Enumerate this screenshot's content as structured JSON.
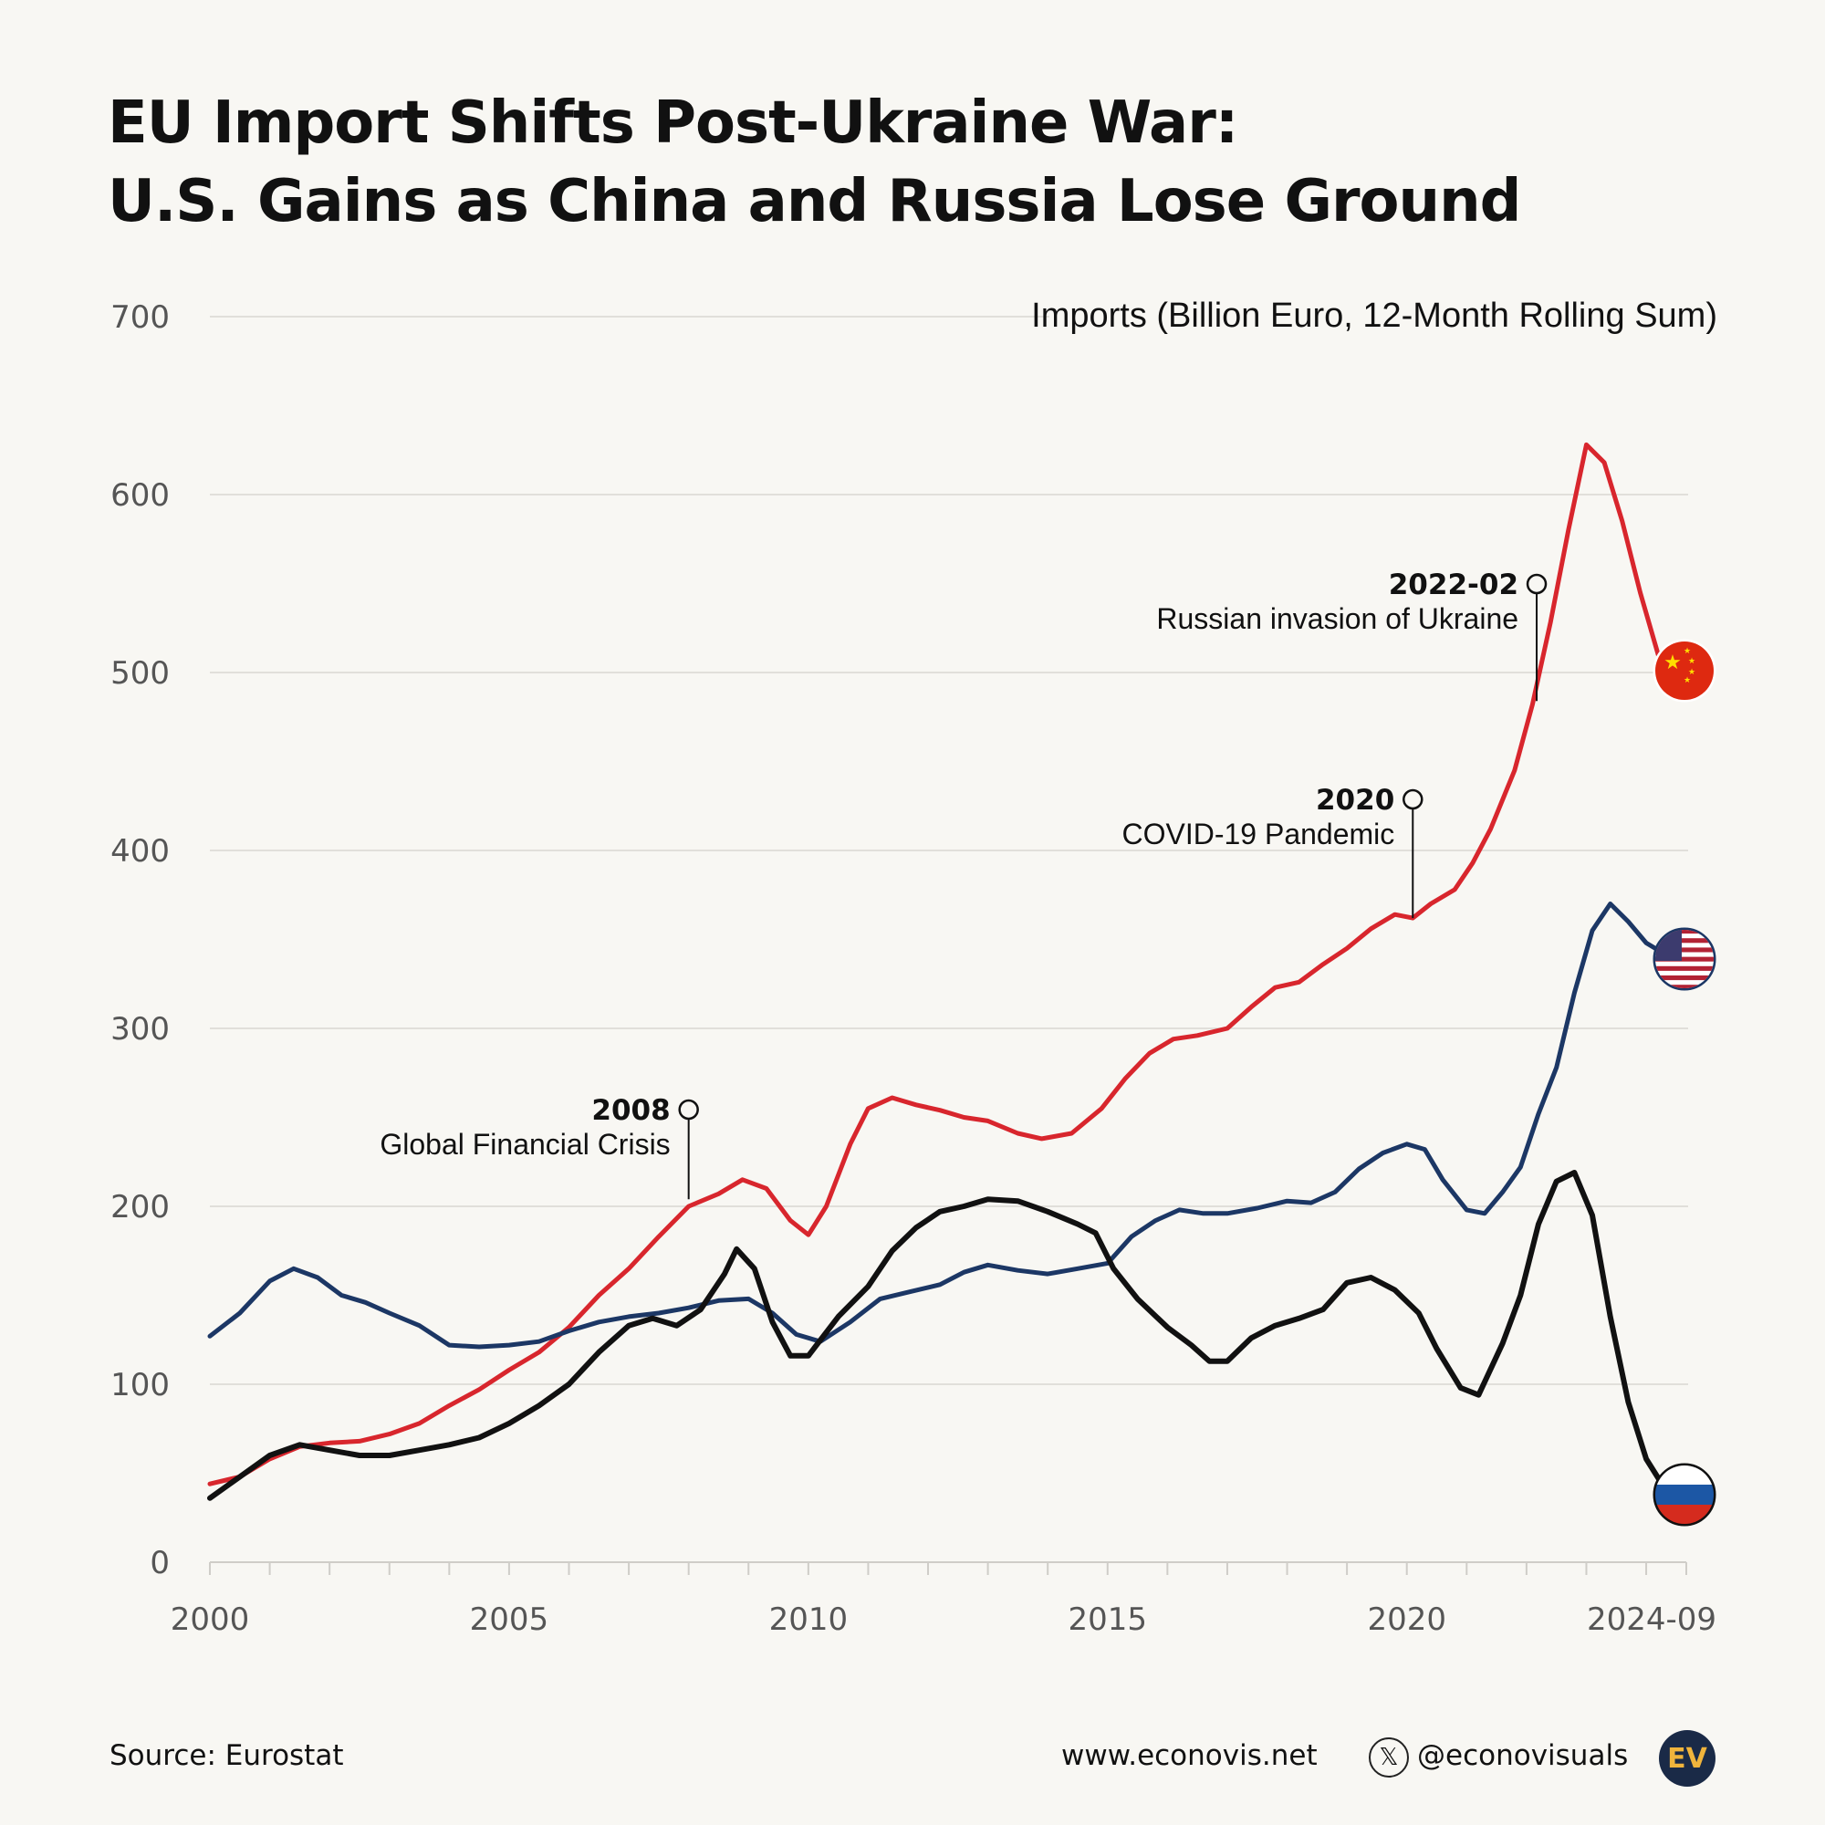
{
  "title": {
    "line1": "EU Import Shifts Post-Ukraine War:",
    "line2": "U.S. Gains as China and Russia Lose Ground"
  },
  "chart_data": {
    "type": "line",
    "title": "EU Import Shifts Post-Ukraine War: U.S. Gains as China and Russia Lose Ground",
    "ylabel": "Imports (Billion Euro, 12-Month Rolling Sum)",
    "xlabel": "",
    "ylim": [
      0,
      700
    ],
    "xlim": [
      2000,
      2024.67
    ],
    "y_ticks": [
      0,
      100,
      200,
      300,
      400,
      500,
      600,
      700
    ],
    "x_tick_labels": [
      {
        "x": 2000,
        "label": "2000"
      },
      {
        "x": 2005,
        "label": "2005"
      },
      {
        "x": 2010,
        "label": "2010"
      },
      {
        "x": 2015,
        "label": "2015"
      },
      {
        "x": 2020,
        "label": "2020"
      },
      {
        "x": 2024.67,
        "label": "2024-09"
      }
    ],
    "series": [
      {
        "name": "China",
        "color": "#d8262d",
        "flag": "china-flag",
        "points": [
          [
            2000,
            44
          ],
          [
            2000.5,
            48
          ],
          [
            2001,
            58
          ],
          [
            2001.5,
            65
          ],
          [
            2002,
            67
          ],
          [
            2002.5,
            68
          ],
          [
            2003,
            72
          ],
          [
            2003.5,
            78
          ],
          [
            2004,
            88
          ],
          [
            2004.5,
            97
          ],
          [
            2005,
            108
          ],
          [
            2005.5,
            118
          ],
          [
            2006,
            132
          ],
          [
            2006.5,
            150
          ],
          [
            2007,
            165
          ],
          [
            2007.5,
            183
          ],
          [
            2008,
            200
          ],
          [
            2008.5,
            207
          ],
          [
            2008.9,
            215
          ],
          [
            2009.3,
            210
          ],
          [
            2009.7,
            192
          ],
          [
            2010,
            184
          ],
          [
            2010.3,
            200
          ],
          [
            2010.7,
            235
          ],
          [
            2011,
            255
          ],
          [
            2011.4,
            261
          ],
          [
            2011.8,
            257
          ],
          [
            2012.2,
            254
          ],
          [
            2012.6,
            250
          ],
          [
            2013,
            248
          ],
          [
            2013.5,
            241
          ],
          [
            2013.9,
            238
          ],
          [
            2014.4,
            241
          ],
          [
            2014.9,
            255
          ],
          [
            2015.3,
            272
          ],
          [
            2015.7,
            286
          ],
          [
            2016.1,
            294
          ],
          [
            2016.5,
            296
          ],
          [
            2017,
            300
          ],
          [
            2017.4,
            312
          ],
          [
            2017.8,
            323
          ],
          [
            2018.2,
            326
          ],
          [
            2018.6,
            336
          ],
          [
            2019,
            345
          ],
          [
            2019.4,
            356
          ],
          [
            2019.8,
            364
          ],
          [
            2020.1,
            362
          ],
          [
            2020.4,
            370
          ],
          [
            2020.8,
            378
          ],
          [
            2021.1,
            393
          ],
          [
            2021.4,
            412
          ],
          [
            2021.8,
            445
          ],
          [
            2022.1,
            482
          ],
          [
            2022.4,
            528
          ],
          [
            2022.7,
            580
          ],
          [
            2023,
            628
          ],
          [
            2023.3,
            618
          ],
          [
            2023.6,
            585
          ],
          [
            2023.9,
            545
          ],
          [
            2024.2,
            510
          ],
          [
            2024.67,
            500
          ]
        ]
      },
      {
        "name": "United States",
        "color": "#1c3765",
        "flag": "usa-flag",
        "points": [
          [
            2000,
            127
          ],
          [
            2000.5,
            140
          ],
          [
            2001,
            158
          ],
          [
            2001.4,
            165
          ],
          [
            2001.8,
            160
          ],
          [
            2002.2,
            150
          ],
          [
            2002.6,
            146
          ],
          [
            2003,
            140
          ],
          [
            2003.5,
            133
          ],
          [
            2004,
            122
          ],
          [
            2004.5,
            121
          ],
          [
            2005,
            122
          ],
          [
            2005.5,
            124
          ],
          [
            2006,
            130
          ],
          [
            2006.5,
            135
          ],
          [
            2007,
            138
          ],
          [
            2007.5,
            140
          ],
          [
            2008,
            143
          ],
          [
            2008.5,
            147
          ],
          [
            2009,
            148
          ],
          [
            2009.4,
            140
          ],
          [
            2009.8,
            128
          ],
          [
            2010.2,
            124
          ],
          [
            2010.7,
            135
          ],
          [
            2011.2,
            148
          ],
          [
            2011.7,
            152
          ],
          [
            2012.2,
            156
          ],
          [
            2012.6,
            163
          ],
          [
            2013,
            167
          ],
          [
            2013.5,
            164
          ],
          [
            2014,
            162
          ],
          [
            2014.5,
            165
          ],
          [
            2015,
            168
          ],
          [
            2015.4,
            183
          ],
          [
            2015.8,
            192
          ],
          [
            2016.2,
            198
          ],
          [
            2016.6,
            196
          ],
          [
            2017,
            196
          ],
          [
            2017.5,
            199
          ],
          [
            2018,
            203
          ],
          [
            2018.4,
            202
          ],
          [
            2018.8,
            208
          ],
          [
            2019.2,
            221
          ],
          [
            2019.6,
            230
          ],
          [
            2020,
            235
          ],
          [
            2020.3,
            232
          ],
          [
            2020.6,
            215
          ],
          [
            2021,
            198
          ],
          [
            2021.3,
            196
          ],
          [
            2021.6,
            208
          ],
          [
            2021.9,
            222
          ],
          [
            2022.2,
            252
          ],
          [
            2022.5,
            278
          ],
          [
            2022.8,
            320
          ],
          [
            2023.1,
            355
          ],
          [
            2023.4,
            370
          ],
          [
            2023.7,
            360
          ],
          [
            2024,
            348
          ],
          [
            2024.3,
            342
          ],
          [
            2024.67,
            339
          ]
        ]
      },
      {
        "name": "Russia",
        "color": "#111111",
        "flag": "russia-flag",
        "points": [
          [
            2000,
            36
          ],
          [
            2000.5,
            48
          ],
          [
            2001,
            60
          ],
          [
            2001.5,
            66
          ],
          [
            2002,
            63
          ],
          [
            2002.5,
            60
          ],
          [
            2003,
            60
          ],
          [
            2003.5,
            63
          ],
          [
            2004,
            66
          ],
          [
            2004.5,
            70
          ],
          [
            2005,
            78
          ],
          [
            2005.5,
            88
          ],
          [
            2006,
            100
          ],
          [
            2006.5,
            118
          ],
          [
            2007,
            133
          ],
          [
            2007.4,
            137
          ],
          [
            2007.8,
            133
          ],
          [
            2008.2,
            142
          ],
          [
            2008.6,
            162
          ],
          [
            2008.8,
            176
          ],
          [
            2009.1,
            165
          ],
          [
            2009.4,
            135
          ],
          [
            2009.7,
            116
          ],
          [
            2010,
            116
          ],
          [
            2010.5,
            138
          ],
          [
            2011,
            155
          ],
          [
            2011.4,
            175
          ],
          [
            2011.8,
            188
          ],
          [
            2012.2,
            197
          ],
          [
            2012.6,
            200
          ],
          [
            2013,
            204
          ],
          [
            2013.5,
            203
          ],
          [
            2014,
            197
          ],
          [
            2014.5,
            190
          ],
          [
            2014.8,
            185
          ],
          [
            2015.1,
            165
          ],
          [
            2015.5,
            148
          ],
          [
            2016,
            132
          ],
          [
            2016.4,
            122
          ],
          [
            2016.7,
            113
          ],
          [
            2017,
            113
          ],
          [
            2017.4,
            126
          ],
          [
            2017.8,
            133
          ],
          [
            2018.2,
            137
          ],
          [
            2018.6,
            142
          ],
          [
            2019,
            157
          ],
          [
            2019.4,
            160
          ],
          [
            2019.8,
            153
          ],
          [
            2020.2,
            140
          ],
          [
            2020.5,
            120
          ],
          [
            2020.9,
            98
          ],
          [
            2021.2,
            94
          ],
          [
            2021.6,
            123
          ],
          [
            2021.9,
            150
          ],
          [
            2022.2,
            190
          ],
          [
            2022.5,
            214
          ],
          [
            2022.8,
            219
          ],
          [
            2023.1,
            195
          ],
          [
            2023.4,
            138
          ],
          [
            2023.7,
            90
          ],
          [
            2024,
            58
          ],
          [
            2024.3,
            42
          ],
          [
            2024.67,
            38
          ]
        ]
      }
    ],
    "annotations": [
      {
        "x": 2008,
        "y": 204,
        "year": "2008",
        "text": "Global Financial Crisis"
      },
      {
        "x": 2020.1,
        "y": 362,
        "year": "2020",
        "text": "COVID-19 Pandemic"
      },
      {
        "x": 2022.17,
        "y": 484,
        "year": "2022-02",
        "text": "Russian invasion of Ukraine"
      }
    ]
  },
  "footer": {
    "source": "Source: Eurostat",
    "website": "www.econovis.net",
    "x_logo": "𝕏",
    "handle": "@econovisuals",
    "logo": "EV"
  }
}
